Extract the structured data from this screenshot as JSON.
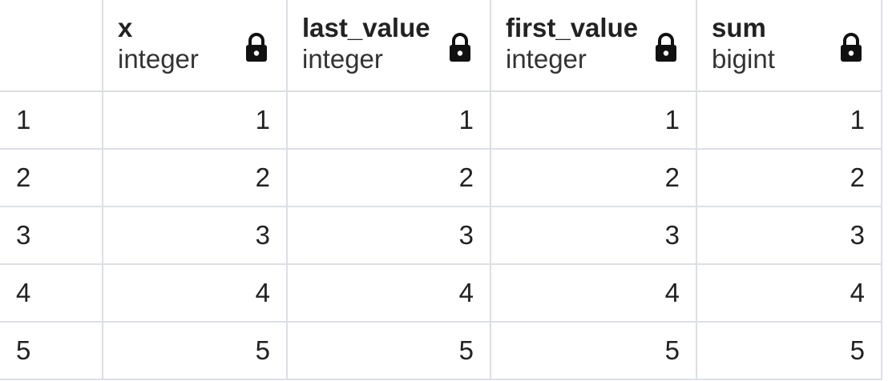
{
  "columns": [
    {
      "name": "x",
      "type": "integer",
      "icon": "lock-icon"
    },
    {
      "name": "last_value",
      "type": "integer",
      "icon": "lock-icon"
    },
    {
      "name": "first_value",
      "type": "integer",
      "icon": "lock-icon"
    },
    {
      "name": "sum",
      "type": "bigint",
      "icon": "lock-icon"
    }
  ],
  "rows": [
    {
      "index": "1",
      "cells": [
        "1",
        "1",
        "1",
        "1"
      ]
    },
    {
      "index": "2",
      "cells": [
        "2",
        "2",
        "2",
        "2"
      ]
    },
    {
      "index": "3",
      "cells": [
        "3",
        "3",
        "3",
        "3"
      ]
    },
    {
      "index": "4",
      "cells": [
        "4",
        "4",
        "4",
        "4"
      ]
    },
    {
      "index": "5",
      "cells": [
        "5",
        "5",
        "5",
        "5"
      ]
    }
  ],
  "colors": {
    "grid_line": "#dcdfe6",
    "text": "#222222",
    "lock": "#111111"
  }
}
